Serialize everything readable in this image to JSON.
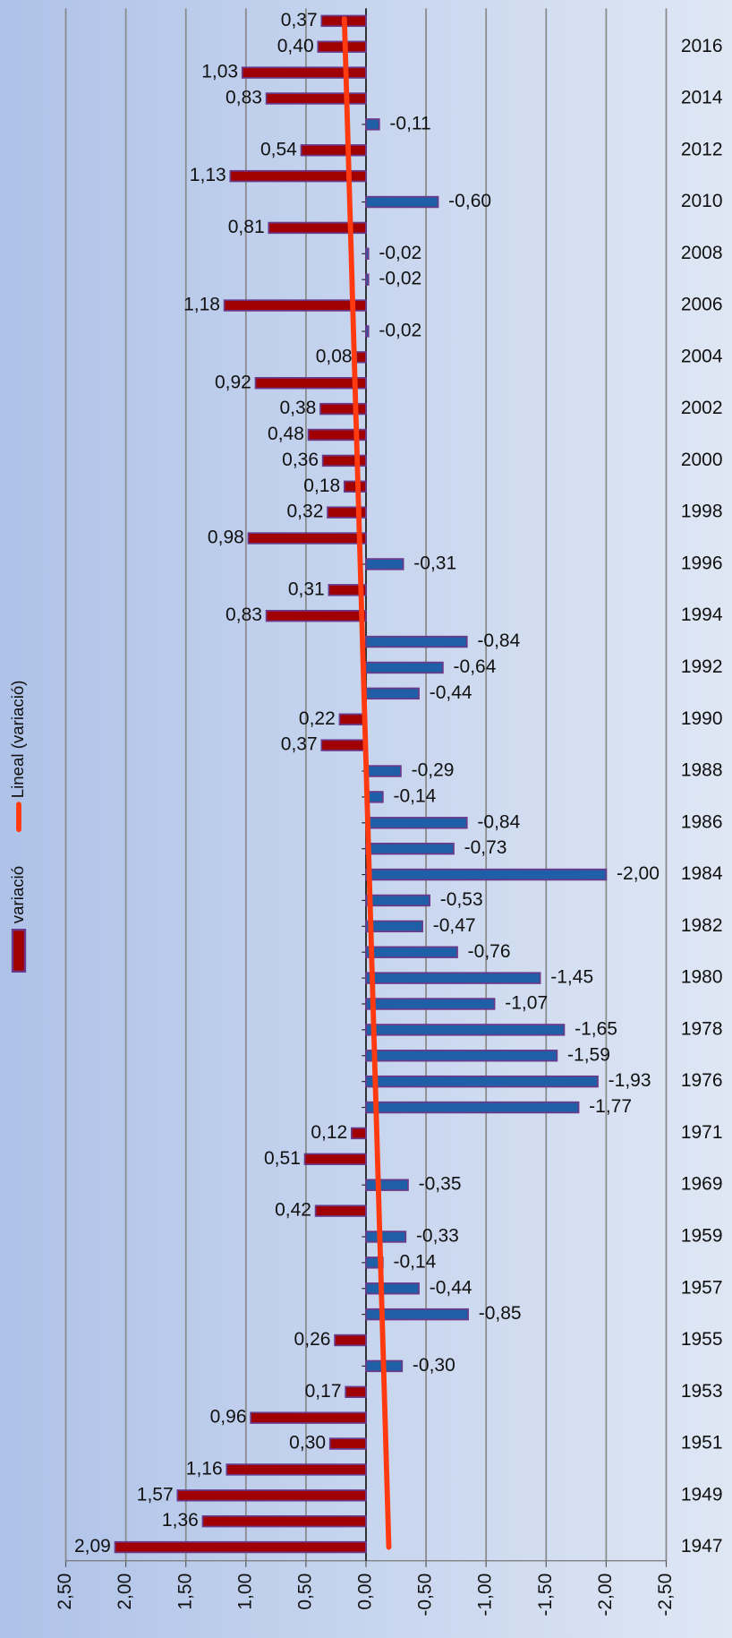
{
  "chart_data": {
    "type": "bar",
    "orientation": "horizontal",
    "categories": [
      null,
      "2016",
      null,
      "2014",
      null,
      "2012",
      null,
      "2010",
      null,
      "2008",
      null,
      "2006",
      null,
      "2004",
      null,
      "2002",
      null,
      "2000",
      null,
      "1998",
      null,
      "1996",
      null,
      "1994",
      null,
      "1992",
      null,
      "1990",
      null,
      "1988",
      null,
      "1986",
      null,
      "1984",
      null,
      "1982",
      null,
      "1980",
      null,
      "1978",
      null,
      "1976",
      null,
      "1971",
      null,
      "1969",
      null,
      "1959",
      null,
      "1957",
      null,
      "1955",
      null,
      "1953",
      null,
      "1951",
      null,
      "1949",
      null,
      "1947"
    ],
    "series": [
      {
        "name": "variació",
        "color": "#a00000",
        "negative_color": "#1f5fa8",
        "values": [
          0.37,
          0.4,
          1.03,
          0.83,
          -0.11,
          0.54,
          1.13,
          -0.6,
          0.81,
          -0.02,
          -0.02,
          1.18,
          -0.02,
          0.08,
          0.92,
          0.38,
          0.48,
          0.36,
          0.18,
          0.32,
          0.98,
          -0.31,
          0.31,
          0.83,
          -0.84,
          -0.64,
          -0.44,
          0.22,
          0.37,
          -0.29,
          -0.14,
          -0.84,
          -0.73,
          -2.0,
          -0.53,
          -0.47,
          -0.76,
          -1.45,
          -1.07,
          -1.65,
          -1.59,
          -1.93,
          -1.77,
          0.12,
          0.51,
          -0.35,
          0.42,
          -0.33,
          -0.14,
          -0.44,
          -0.85,
          0.26,
          -0.3,
          0.17,
          0.96,
          0.3,
          1.16,
          1.57,
          1.36,
          2.09
        ],
        "value_labels": [
          "0,37",
          "0,40",
          "1,03",
          "0,83",
          "-0,11",
          "0,54",
          "1,13",
          "-0,60",
          "0,81",
          "-0,02",
          "-0,02",
          "1,18",
          "-0,02",
          "0,08",
          "0,92",
          "0,38",
          "0,48",
          "0,36",
          "0,18",
          "0,32",
          "0,98",
          "-0,31",
          "0,31",
          "0,83",
          "-0,84",
          "-0,64",
          "-0,44",
          "0,22",
          "0,37",
          "-0,29",
          "-0,14",
          "-0,84",
          "-0,73",
          "-2,00",
          "-0,53",
          "-0,47",
          "-0,76",
          "-1,45",
          "-1,07",
          "-1,65",
          "-1,59",
          "-1,93",
          "-1,77",
          "0,12",
          "0,51",
          "-0,35",
          "0,42",
          "-0,33",
          "-0,14",
          "-0,44",
          "-0,85",
          "0,26",
          "-0,30",
          "0,17",
          "0,96",
          "0,30",
          "1,16",
          "1,57",
          "1,36",
          "2,09"
        ]
      }
    ],
    "trendline": {
      "name": "Lineal (variació)",
      "color": "#ff3a10",
      "values": [
        0.18,
        -0.19
      ]
    },
    "xlim": [
      2.5,
      -2.5
    ],
    "xticks": [
      {
        "value": 2.5,
        "label": "2,50"
      },
      {
        "value": 2.0,
        "label": "2,00"
      },
      {
        "value": 1.5,
        "label": "1,50"
      },
      {
        "value": 1.0,
        "label": "1,00"
      },
      {
        "value": 0.5,
        "label": "0,50"
      },
      {
        "value": 0.0,
        "label": "0,00"
      },
      {
        "value": -0.5,
        "label": "-0,50"
      },
      {
        "value": -1.0,
        "label": "-1,00"
      },
      {
        "value": -1.5,
        "label": "-1,50"
      },
      {
        "value": -2.0,
        "label": "-2,00"
      },
      {
        "value": -2.5,
        "label": "-2,50"
      }
    ],
    "grid": true,
    "legend": "left"
  }
}
